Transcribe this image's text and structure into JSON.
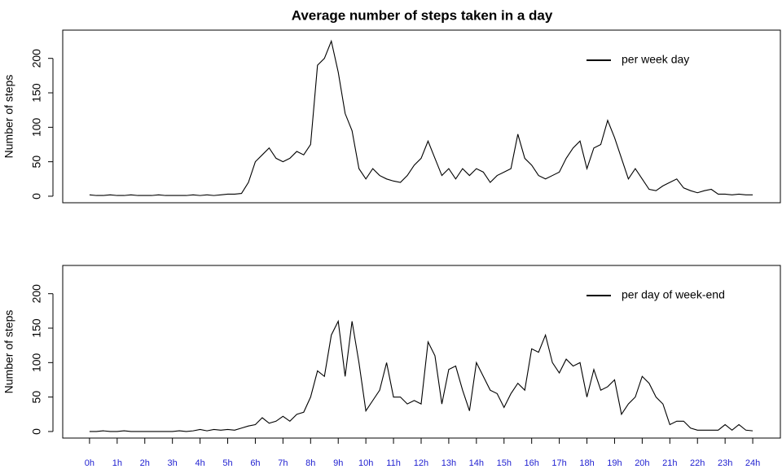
{
  "chart_data": [
    {
      "type": "line",
      "title": "Average number of steps taken in a day",
      "ylabel": "Number of steps",
      "x": [
        0,
        0.25,
        0.5,
        0.75,
        1,
        1.25,
        1.5,
        1.75,
        2,
        2.25,
        2.5,
        2.75,
        3,
        3.25,
        3.5,
        3.75,
        4,
        4.25,
        4.5,
        4.75,
        5,
        5.25,
        5.5,
        5.75,
        6,
        6.25,
        6.5,
        6.75,
        7,
        7.25,
        7.5,
        7.75,
        8,
        8.25,
        8.5,
        8.75,
        9,
        9.25,
        9.5,
        9.75,
        10,
        10.25,
        10.5,
        10.75,
        11,
        11.25,
        11.5,
        11.75,
        12,
        12.25,
        12.5,
        12.75,
        13,
        13.25,
        13.5,
        13.75,
        14,
        14.25,
        14.5,
        14.75,
        15,
        15.25,
        15.5,
        15.75,
        16,
        16.25,
        16.5,
        16.75,
        17,
        17.25,
        17.5,
        17.75,
        18,
        18.25,
        18.5,
        18.75,
        19,
        19.25,
        19.5,
        19.75,
        20,
        20.25,
        20.5,
        20.75,
        21,
        21.25,
        21.5,
        21.75,
        22,
        22.25,
        22.5,
        22.75,
        23,
        23.25,
        23.5,
        23.75,
        24
      ],
      "series": [
        {
          "name": "per week day",
          "color": "#000000",
          "values": [
            2,
            1,
            1,
            2,
            1,
            1,
            2,
            1,
            1,
            1,
            2,
            1,
            1,
            1,
            1,
            2,
            1,
            2,
            1,
            2,
            3,
            3,
            4,
            20,
            50,
            60,
            70,
            55,
            50,
            55,
            65,
            60,
            75,
            190,
            200,
            225,
            180,
            120,
            95,
            40,
            25,
            40,
            30,
            25,
            22,
            20,
            30,
            45,
            55,
            80,
            55,
            30,
            40,
            25,
            40,
            30,
            40,
            35,
            20,
            30,
            35,
            40,
            90,
            55,
            45,
            30,
            25,
            30,
            35,
            55,
            70,
            80,
            40,
            70,
            75,
            110,
            85,
            55,
            25,
            40,
            25,
            10,
            8,
            15,
            20,
            25,
            12,
            8,
            5,
            8,
            10,
            3,
            3,
            2,
            3,
            2,
            2
          ]
        }
      ],
      "xlim": [
        -0.97,
        25
      ],
      "ylim": [
        -9.5,
        241
      ],
      "yticks": [
        0,
        50,
        100,
        150,
        200
      ],
      "legend": "top-right"
    },
    {
      "type": "line",
      "ylabel": "Number of steps",
      "x": [
        0,
        0.25,
        0.5,
        0.75,
        1,
        1.25,
        1.5,
        1.75,
        2,
        2.25,
        2.5,
        2.75,
        3,
        3.25,
        3.5,
        3.75,
        4,
        4.25,
        4.5,
        4.75,
        5,
        5.25,
        5.5,
        5.75,
        6,
        6.25,
        6.5,
        6.75,
        7,
        7.25,
        7.5,
        7.75,
        8,
        8.25,
        8.5,
        8.75,
        9,
        9.25,
        9.5,
        9.75,
        10,
        10.25,
        10.5,
        10.75,
        11,
        11.25,
        11.5,
        11.75,
        12,
        12.25,
        12.5,
        12.75,
        13,
        13.25,
        13.5,
        13.75,
        14,
        14.25,
        14.5,
        14.75,
        15,
        15.25,
        15.5,
        15.75,
        16,
        16.25,
        16.5,
        16.75,
        17,
        17.25,
        17.5,
        17.75,
        18,
        18.25,
        18.5,
        18.75,
        19,
        19.25,
        19.5,
        19.75,
        20,
        20.25,
        20.5,
        20.75,
        21,
        21.25,
        21.5,
        21.75,
        22,
        22.25,
        22.5,
        22.75,
        23,
        23.25,
        23.5,
        23.75,
        24
      ],
      "series": [
        {
          "name": "per day of week-end",
          "color": "#000000",
          "values": [
            0,
            0,
            1,
            0,
            0,
            1,
            0,
            0,
            0,
            0,
            0,
            0,
            0,
            1,
            0,
            1,
            3,
            1,
            3,
            2,
            3,
            2,
            5,
            8,
            10,
            20,
            12,
            15,
            22,
            15,
            25,
            28,
            50,
            88,
            80,
            140,
            160,
            80,
            160,
            100,
            30,
            45,
            60,
            100,
            50,
            50,
            40,
            45,
            40,
            130,
            110,
            40,
            90,
            95,
            60,
            30,
            100,
            80,
            60,
            55,
            35,
            55,
            70,
            60,
            120,
            115,
            140,
            100,
            85,
            105,
            95,
            100,
            50,
            90,
            60,
            65,
            75,
            25,
            40,
            50,
            80,
            70,
            50,
            40,
            10,
            15,
            15,
            5,
            2,
            2,
            2,
            2,
            10,
            2,
            10,
            2,
            1
          ]
        }
      ],
      "xlim": [
        -0.97,
        25
      ],
      "ylim": [
        -9.5,
        241
      ],
      "yticks": [
        0,
        50,
        100,
        150,
        200
      ],
      "xticks": [
        {
          "value": 0,
          "label": "0h"
        },
        {
          "value": 1,
          "label": "1h"
        },
        {
          "value": 2,
          "label": "2h"
        },
        {
          "value": 3,
          "label": "3h"
        },
        {
          "value": 4,
          "label": "4h"
        },
        {
          "value": 5,
          "label": "5h"
        },
        {
          "value": 6,
          "label": "6h"
        },
        {
          "value": 7,
          "label": "7h"
        },
        {
          "value": 8,
          "label": "8h"
        },
        {
          "value": 9,
          "label": "9h"
        },
        {
          "value": 10,
          "label": "10h"
        },
        {
          "value": 11,
          "label": "11h"
        },
        {
          "value": 12,
          "label": "12h"
        },
        {
          "value": 13,
          "label": "13h"
        },
        {
          "value": 14,
          "label": "14h"
        },
        {
          "value": 15,
          "label": "15h"
        },
        {
          "value": 16,
          "label": "16h"
        },
        {
          "value": 17,
          "label": "17h"
        },
        {
          "value": 18,
          "label": "18h"
        },
        {
          "value": 19,
          "label": "19h"
        },
        {
          "value": 20,
          "label": "20h"
        },
        {
          "value": 21,
          "label": "21h"
        },
        {
          "value": 22,
          "label": "22h"
        },
        {
          "value": 23,
          "label": "23h"
        },
        {
          "value": 24,
          "label": "24h"
        }
      ],
      "legend": "top-right"
    }
  ]
}
